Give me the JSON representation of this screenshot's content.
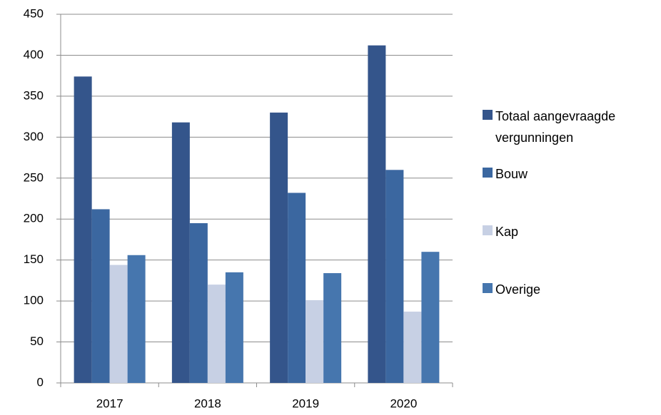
{
  "chart_data": {
    "type": "bar",
    "categories": [
      "2017",
      "2018",
      "2019",
      "2020"
    ],
    "series": [
      {
        "name": "Totaal aangevraagde vergunningen",
        "color": "#34558b",
        "values": [
          374,
          318,
          330,
          412
        ]
      },
      {
        "name": "Bouw",
        "color": "#3b67a0",
        "values": [
          212,
          195,
          232,
          260
        ]
      },
      {
        "name": "Kap",
        "color": "#c7d0e4",
        "values": [
          144,
          120,
          101,
          87
        ]
      },
      {
        "name": "Overige",
        "color": "#4676ae",
        "values": [
          156,
          135,
          134,
          160
        ]
      }
    ],
    "ylim": [
      0,
      450
    ],
    "yticks": [
      0,
      50,
      100,
      150,
      200,
      250,
      300,
      350,
      400,
      450
    ],
    "grid": true,
    "legend": "right"
  }
}
